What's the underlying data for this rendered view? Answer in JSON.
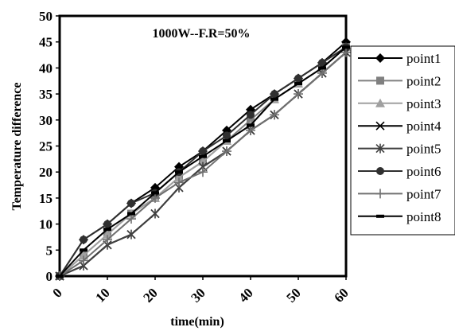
{
  "chart_data": {
    "type": "line",
    "title": "1000W--F.R=50%",
    "xlabel": "time(min)",
    "ylabel": "Temperature difference",
    "xlim": [
      0,
      60
    ],
    "ylim": [
      0,
      50
    ],
    "xticks": [
      "0",
      "10",
      "20",
      "30",
      "40",
      "50",
      "60"
    ],
    "yticks": [
      "0",
      "5",
      "10",
      "15",
      "20",
      "25",
      "30",
      "35",
      "40",
      "45",
      "50"
    ],
    "x": [
      0,
      5,
      10,
      15,
      20,
      25,
      30,
      35,
      40,
      45,
      50,
      55,
      60
    ],
    "grid": false,
    "legend_position": "right",
    "series": [
      {
        "name": "point1",
        "marker": "diamond",
        "color": "#000000",
        "values": [
          0,
          7,
          10,
          14,
          17,
          21,
          24,
          28,
          32,
          35,
          38,
          41,
          45
        ]
      },
      {
        "name": "point2",
        "marker": "square",
        "color": "#808080",
        "values": [
          0,
          4,
          8,
          12,
          15,
          19,
          22,
          26,
          30,
          34,
          37,
          40,
          44
        ]
      },
      {
        "name": "point3",
        "marker": "triangle",
        "color": "#a0a0a0",
        "values": [
          0,
          4,
          8,
          12,
          15,
          19,
          22,
          26,
          29,
          34,
          37,
          40,
          44
        ]
      },
      {
        "name": "point4",
        "marker": "x",
        "color": "#000000",
        "values": [
          0,
          2,
          6,
          8,
          12,
          17,
          21,
          24,
          28,
          31,
          35,
          39,
          43
        ]
      },
      {
        "name": "point5",
        "marker": "star",
        "color": "#404040",
        "values": [
          0,
          2,
          6,
          8,
          12,
          17,
          21,
          24,
          28,
          31,
          35,
          39,
          43
        ]
      },
      {
        "name": "point6",
        "marker": "circle",
        "color": "#303030",
        "values": [
          0,
          7,
          10,
          14,
          16,
          20,
          24,
          27,
          31,
          35,
          38,
          41,
          44
        ]
      },
      {
        "name": "point7",
        "marker": "plus",
        "color": "#707070",
        "values": [
          0,
          3,
          7,
          11,
          15,
          18,
          20,
          24,
          28,
          31,
          35,
          39,
          43
        ]
      },
      {
        "name": "point8",
        "marker": "dash",
        "color": "#000000",
        "values": [
          0,
          5,
          9,
          12,
          16,
          20,
          23,
          26,
          29,
          34,
          37,
          40,
          44
        ]
      }
    ]
  }
}
